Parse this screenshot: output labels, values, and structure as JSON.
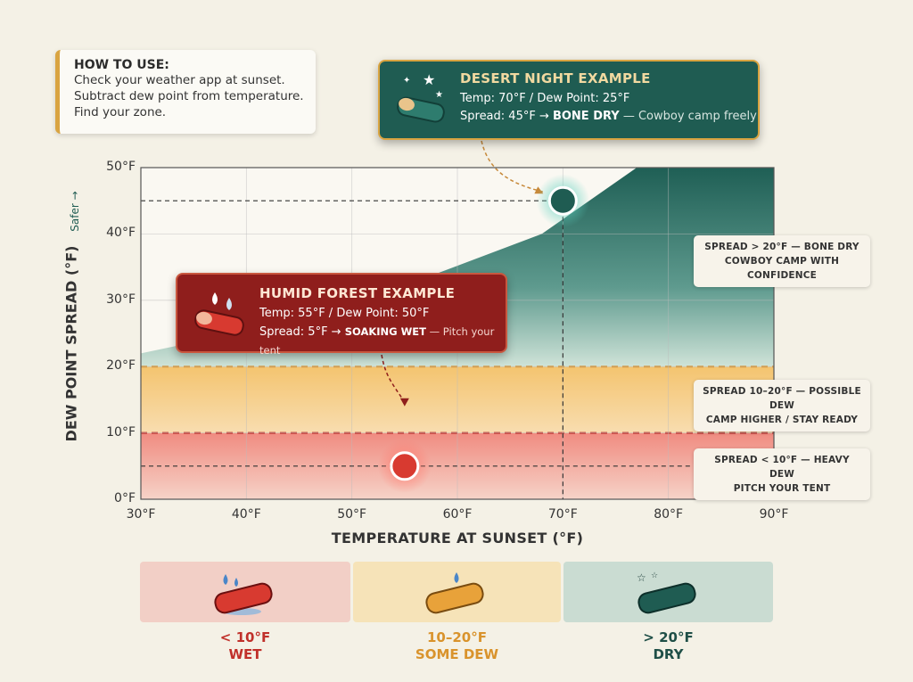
{
  "howto": {
    "heading": "HOW TO USE:",
    "lines": [
      "Check your weather app at sunset.",
      "Subtract dew point from temperature.",
      "Find your zone."
    ]
  },
  "desert_example": {
    "title": "DESERT NIGHT EXAMPLE",
    "line1": "Temp: 70°F / Dew Point: 25°F",
    "spread_prefix": "Spread: 45°F → ",
    "verdict": "BONE DRY",
    "advice": " — Cowboy camp freely"
  },
  "humid_example": {
    "title": "HUMID FOREST EXAMPLE",
    "line1": "Temp: 55°F / Dew Point: 50°F",
    "spread_prefix": "Spread: 5°F → ",
    "verdict": "SOAKING WET",
    "advice": " — Pitch your tent"
  },
  "zone_labels": {
    "dry": [
      "SPREAD > 20°F — BONE DRY",
      "COWBOY CAMP WITH CONFIDENCE"
    ],
    "dew": [
      "SPREAD 10–20°F — POSSIBLE DEW",
      "CAMP HIGHER / STAY READY"
    ],
    "wet": [
      "SPREAD < 10°F — HEAVY DEW",
      "PITCH YOUR TENT"
    ]
  },
  "legend": {
    "wet": {
      "range": "< 10°F",
      "label": "WET"
    },
    "dew": {
      "range": "10–20°F",
      "label": "SOME DEW"
    },
    "dry": {
      "range": "> 20°F",
      "label": "DRY"
    }
  },
  "colors": {
    "wet": "#d83a30",
    "dew": "#e8a23a",
    "dry": "#1f5c52",
    "wet_bg": "#f2cfc6",
    "dew_bg": "#f6e3b8",
    "dry_bg": "#cadcd2"
  },
  "chart_data": {
    "type": "area",
    "xlabel": "TEMPERATURE AT SUNSET (°F)",
    "ylabel": "DEW POINT SPREAD (°F)",
    "y_note": "Safer →",
    "x_ticks": [
      "30°F",
      "40°F",
      "50°F",
      "60°F",
      "70°F",
      "80°F",
      "90°F"
    ],
    "y_ticks": [
      "0°F",
      "10°F",
      "20°F",
      "30°F",
      "40°F",
      "50°F"
    ],
    "xlim": [
      30,
      90
    ],
    "ylim": [
      0,
      50
    ],
    "grid": true,
    "zones": [
      {
        "name": "wet",
        "from": 0,
        "to": 10
      },
      {
        "name": "dew",
        "from": 10,
        "to": 20
      },
      {
        "name": "dry",
        "from": 20,
        "to": 50
      }
    ],
    "dry_boundary": {
      "x": [
        30,
        48,
        68,
        77,
        90
      ],
      "y": [
        22,
        28,
        40,
        50,
        50
      ]
    },
    "points": [
      {
        "name": "desert",
        "x": 70,
        "y": 45
      },
      {
        "name": "humid",
        "x": 55,
        "y": 5
      }
    ]
  }
}
